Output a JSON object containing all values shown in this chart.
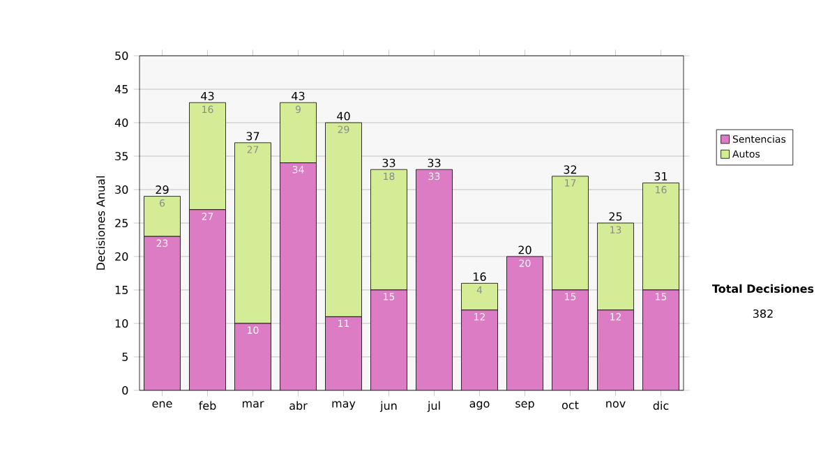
{
  "chart_data": {
    "type": "bar",
    "stacked": true,
    "ylabel": "Decisiones Anual",
    "categories": [
      "ene",
      "feb",
      "mar",
      "abr",
      "may",
      "jun",
      "jul",
      "ago",
      "sep",
      "oct",
      "nov",
      "dic"
    ],
    "series": [
      {
        "name": "Sentencias",
        "color": "#dc7cc4",
        "values": [
          23,
          27,
          10,
          34,
          11,
          15,
          33,
          12,
          20,
          15,
          12,
          15
        ],
        "value_labels": [
          "23",
          "27",
          "10",
          "34",
          "11",
          "15",
          "33",
          "12",
          "20",
          "15",
          "12",
          "15"
        ]
      },
      {
        "name": "Autos",
        "color": "#d4ec96",
        "values": [
          6,
          16,
          27,
          9,
          29,
          18,
          0,
          4,
          0,
          17,
          13,
          16
        ],
        "value_labels": [
          "6",
          "16",
          "27",
          "9",
          "29",
          "18",
          null,
          "4",
          null,
          "17",
          "13",
          "16"
        ]
      }
    ],
    "totals": [
      "29",
      "43",
      "37",
      "43",
      "40",
      "33",
      "33",
      "16",
      "20",
      "32",
      "25",
      "31"
    ],
    "ylim": [
      0,
      50
    ],
    "yticks": [
      0,
      5,
      10,
      15,
      20,
      25,
      30,
      35,
      40,
      45,
      50
    ],
    "grid": "y",
    "legend": "right",
    "annotations": [
      "Total Decisiones",
      "382"
    ]
  }
}
